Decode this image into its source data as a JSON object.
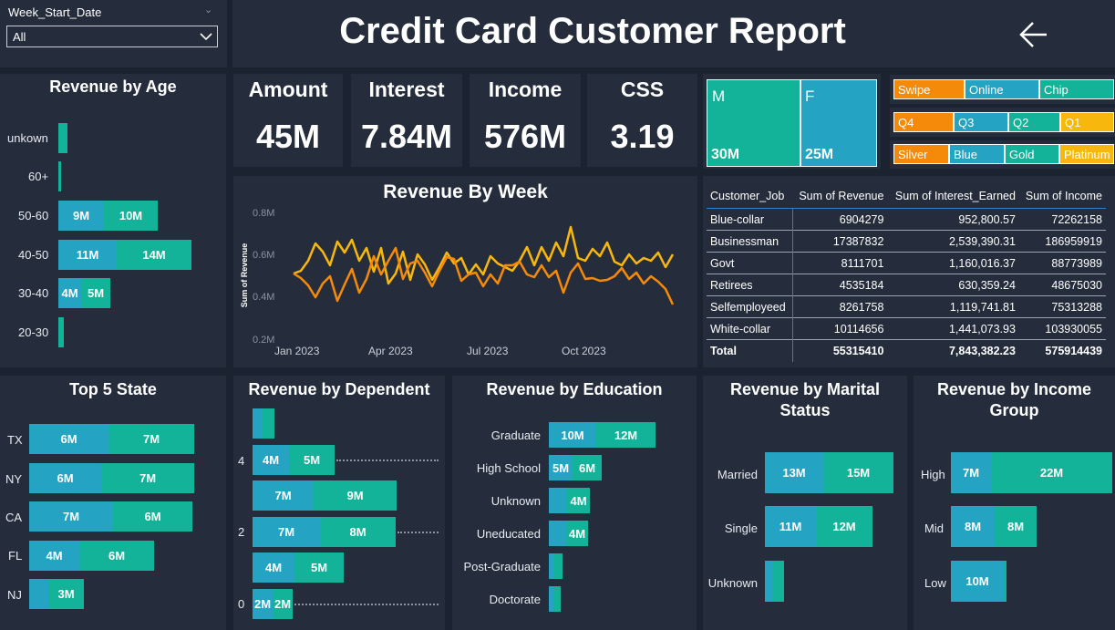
{
  "filter": {
    "label": "Week_Start_Date",
    "value": "All"
  },
  "header": {
    "title": "Credit Card Customer Report",
    "back_icon": "arrow-left-icon"
  },
  "colors": {
    "background": "#1b2230",
    "panel": "#252d3c",
    "blue": "#24a3c3",
    "green": "#13b39a",
    "orange": "#f58a0a",
    "gold": "#f8b70d"
  },
  "kpis": [
    {
      "title": "Amount",
      "value": "45M"
    },
    {
      "title": "Interest",
      "value": "7.84M"
    },
    {
      "title": "Income",
      "value": "576M"
    },
    {
      "title": "CSS",
      "value": "3.19"
    }
  ],
  "gender": [
    {
      "label": "M",
      "value": "30M"
    },
    {
      "label": "F",
      "value": "25M"
    }
  ],
  "slicers": {
    "exp_type": [
      "Swipe",
      "Online",
      "Chip"
    ],
    "quarter": [
      "Q4",
      "Q3",
      "Q2",
      "Q1"
    ],
    "card_category": [
      "Silver",
      "Blue",
      "Gold",
      "Platinum"
    ]
  },
  "age_chart": {
    "title": "Revenue by Age",
    "rows": [
      {
        "label": "unkown",
        "a": "",
        "b": ""
      },
      {
        "label": "60+",
        "a": "",
        "b": ""
      },
      {
        "label": "50-60",
        "a": "9M",
        "b": "10M"
      },
      {
        "label": "40-50",
        "a": "11M",
        "b": "14M"
      },
      {
        "label": "30-40",
        "a": "4M",
        "b": "5M"
      },
      {
        "label": "20-30",
        "a": "",
        "b": ""
      }
    ]
  },
  "week_chart": {
    "title": "Revenue By Week",
    "ylabel": "Sum of Revenue",
    "yticks": [
      "0.8M",
      "0.6M",
      "0.4M",
      "0.2M"
    ],
    "xticks": [
      "Jan 2023",
      "Apr 2023",
      "Jul 2023",
      "Oct 2023"
    ]
  },
  "job_table": {
    "headers": [
      "Customer_Job",
      "Sum of Revenue",
      "Sum of Interest_Earned",
      "Sum of Income"
    ],
    "rows": [
      [
        "Blue-collar",
        "6904279",
        "952,800.57",
        "72262158"
      ],
      [
        "Businessman",
        "17387832",
        "2,539,390.31",
        "186959919"
      ],
      [
        "Govt",
        "8111701",
        "1,160,016.37",
        "88773989"
      ],
      [
        "Retirees",
        "4535184",
        "630,359.24",
        "48675030"
      ],
      [
        "Selfemployeed",
        "8261758",
        "1,119,741.81",
        "75313288"
      ],
      [
        "White-collar",
        "10114656",
        "1,441,073.93",
        "103930055"
      ]
    ],
    "total": [
      "Total",
      "55315410",
      "7,843,382.23",
      "575914439"
    ]
  },
  "state_chart": {
    "title": "Top 5 State",
    "rows": [
      {
        "label": "TX",
        "a": "6M",
        "b": "7M"
      },
      {
        "label": "NY",
        "a": "6M",
        "b": "7M"
      },
      {
        "label": "CA",
        "a": "7M",
        "b": "6M"
      },
      {
        "label": "FL",
        "a": "4M",
        "b": "6M"
      },
      {
        "label": "NJ",
        "a": "",
        "b": "3M"
      }
    ]
  },
  "dependent_chart": {
    "title": "Revenue by Dependent",
    "axis": [
      "4",
      "2",
      "0"
    ],
    "rows": [
      {
        "a": "",
        "b": ""
      },
      {
        "a": "4M",
        "b": "5M"
      },
      {
        "a": "7M",
        "b": "9M"
      },
      {
        "a": "7M",
        "b": "8M"
      },
      {
        "a": "4M",
        "b": "5M"
      },
      {
        "a": "2M",
        "b": "2M"
      }
    ]
  },
  "education_chart": {
    "title": "Revenue by Education",
    "rows": [
      {
        "label": "Graduate",
        "a": "10M",
        "b": "12M"
      },
      {
        "label": "High School",
        "a": "5M",
        "b": "6M"
      },
      {
        "label": "Unknown",
        "a": "",
        "b": "4M"
      },
      {
        "label": "Uneducated",
        "a": "",
        "b": "4M"
      },
      {
        "label": "Post-Graduate",
        "a": "",
        "b": ""
      },
      {
        "label": "Doctorate",
        "a": "",
        "b": ""
      }
    ]
  },
  "marital_chart": {
    "title_line1": "Revenue by Marital",
    "title_line2": "Status",
    "rows": [
      {
        "label": "Married",
        "a": "13M",
        "b": "15M"
      },
      {
        "label": "Single",
        "a": "11M",
        "b": "12M"
      },
      {
        "label": "Unknown",
        "a": "",
        "b": ""
      }
    ]
  },
  "income_chart": {
    "title_line1": "Revenue by Income",
    "title_line2": "Group",
    "rows": [
      {
        "label": "High",
        "a": "7M",
        "b": "22M"
      },
      {
        "label": "Mid",
        "a": "8M",
        "b": "8M"
      },
      {
        "label": "Low",
        "a": "10M",
        "b": ""
      }
    ]
  }
}
